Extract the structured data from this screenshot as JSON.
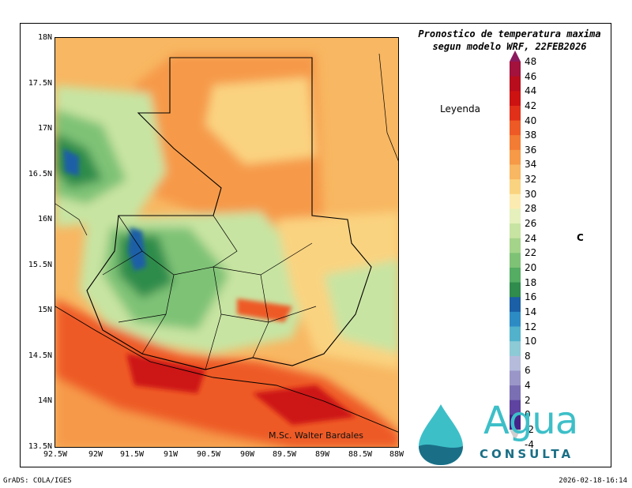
{
  "title_line1": "Pronostico de temperatura maxima",
  "title_line2": "segun modelo WRF, 22FEB2026",
  "legend_label": "Leyenda",
  "unit_label": "C",
  "credit": "M.Sc. Walter Bardales",
  "footer_left": "GrADS: COLA/IGES",
  "footer_right": "2026-02-18-16:14",
  "logo_word1": "Agua",
  "logo_word2": "CONSULTA",
  "lat_labels": [
    "18N",
    "17.5N",
    "17N",
    "16.5N",
    "16N",
    "15.5N",
    "15N",
    "14.5N",
    "14N",
    "13.5N"
  ],
  "lon_labels": [
    "92.5W",
    "92W",
    "91.5W",
    "91W",
    "90.5W",
    "90W",
    "89.5W",
    "89W",
    "88.5W",
    "88W"
  ],
  "colorbar_labels": [
    "48",
    "46",
    "44",
    "42",
    "40",
    "38",
    "36",
    "34",
    "32",
    "30",
    "28",
    "26",
    "24",
    "22",
    "20",
    "18",
    "16",
    "14",
    "12",
    "10",
    "8",
    "6",
    "4",
    "2",
    "0",
    "-2",
    "-4"
  ],
  "colorbar_colors": [
    "#8b1a5e",
    "#a3123c",
    "#b80d1d",
    "#cd1212",
    "#e0301a",
    "#ee5a25",
    "#f37c34",
    "#f69a48",
    "#f8b762",
    "#fad380",
    "#fcebb0",
    "#e5f0bc",
    "#c8e4a2",
    "#a4d48a",
    "#7ec276",
    "#55ac63",
    "#2f8c4c",
    "#1b5fa6",
    "#2d8bc4",
    "#52b2cc",
    "#8ccad5",
    "#b5bcdb",
    "#9a96c8",
    "#7b6fb4",
    "#5e43a0",
    "#45248a",
    "#cfcfcf"
  ],
  "map_colors": {
    "ocean": "#f8b762",
    "hot": "#ee5a25",
    "veryhot": "#cd1212",
    "warm": "#f69a48",
    "mild": "#fad380",
    "cool": "#c8e4a2",
    "green": "#7ec276",
    "darkgreen": "#2f8c4c",
    "blue": "#1b5fa6"
  }
}
